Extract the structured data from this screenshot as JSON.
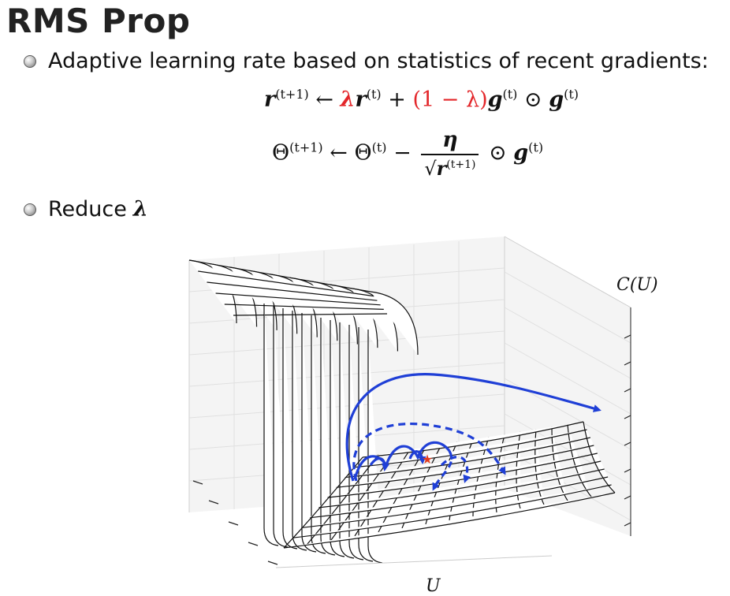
{
  "slide": {
    "title": "RMS Prop",
    "bullets": [
      {
        "text": "Adaptive learning rate based on statistics of recent gradients:"
      },
      {
        "text": "Reduce",
        "symbol": "λ"
      }
    ],
    "equations": {
      "eq1": {
        "lhs": "r",
        "lhs_sup": "(t+1)",
        "arrow": "←",
        "lambda_term": "λ",
        "r": "r",
        "r_sup": "(t)",
        "plus": "+",
        "one_minus_lambda": "(1 − λ)",
        "g1": "g",
        "g1_sup": "(t)",
        "odot": "⊙",
        "g2": "g",
        "g2_sup": "(t)"
      },
      "eq2": {
        "lhs": "Θ",
        "lhs_sup": "(t+1)",
        "arrow": "←",
        "theta": "Θ",
        "theta_sup": "(t)",
        "minus": "−",
        "numerator": "η",
        "sqrt": "√",
        "den_r": "r",
        "den_sup": "(t+1)",
        "odot": "⊙",
        "g": "g",
        "g_sup": "(t)"
      }
    },
    "figure": {
      "z_label": "C(U)",
      "x_label": "U",
      "colors": {
        "trajectory": "#1f3fd6",
        "surface": "#111111",
        "minimum_star": "#e03a1e"
      }
    }
  }
}
